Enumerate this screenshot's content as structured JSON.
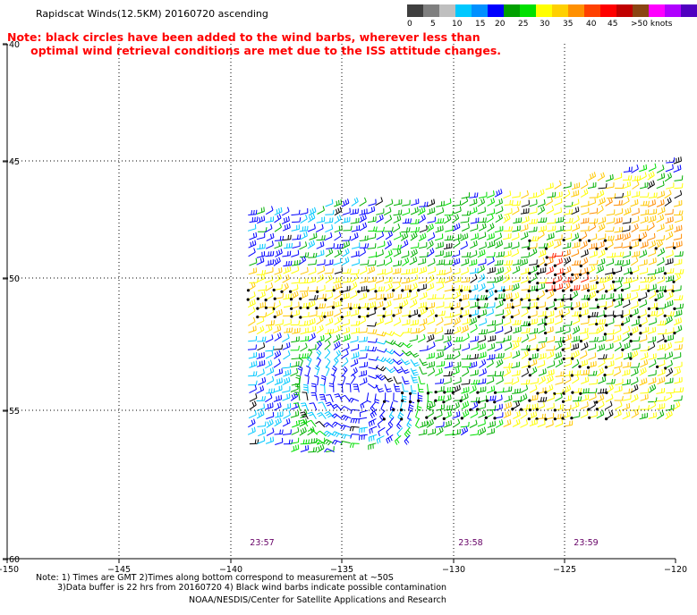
{
  "header": {
    "title": "Rapidscat Winds(12.5KM) 20160720 ascending",
    "note_line1": "Note: black circles have been added to the wind barbs, wherever less than",
    "note_line2": "      optimal wind retrieval conditions are met due to the ISS attitude changes."
  },
  "legend": {
    "labels": [
      "0",
      "5",
      "10",
      "15",
      "20",
      "25",
      "30",
      "35",
      "40",
      "45",
      ">50 knots"
    ],
    "colors": [
      "#3f3f3f",
      "#7f7f7f",
      "#bfbfbf",
      "#00c8ff",
      "#0090ff",
      "#0000ff",
      "#00a000",
      "#00e000",
      "#ffff00",
      "#ffd000",
      "#ff9000",
      "#ff4000",
      "#ff0000",
      "#c00000",
      "#8b4513",
      "#ff00ff",
      "#b000ff",
      "#5000c0"
    ]
  },
  "map": {
    "lon_labels": [
      "−150",
      "−145",
      "−140",
      "−135",
      "−130",
      "−125",
      "−120"
    ],
    "lat_labels": [
      "−40",
      "−45",
      "−50",
      "−55",
      "−60"
    ],
    "times": [
      "23:57",
      "23:58",
      "23:59"
    ],
    "colors": {
      "light_blue": "#00c8ff",
      "blue": "#0000ff",
      "green": "#00b000",
      "bright_green": "#00e000",
      "yellow": "#ffff00",
      "gold": "#ffc800",
      "orange": "#ff8c00",
      "red": "#ff2000",
      "black": "#000000"
    }
  },
  "footer": {
    "line1": "Note: 1) Times are GMT 2)Times along bottom correspond to measurement at ~50S",
    "line2": "3)Data buffer is 22 hrs from 20160720 4) Black wind barbs indicate possible contamination",
    "line3": "NOAA/NESDIS/Center for Satellite Applications and Research"
  }
}
